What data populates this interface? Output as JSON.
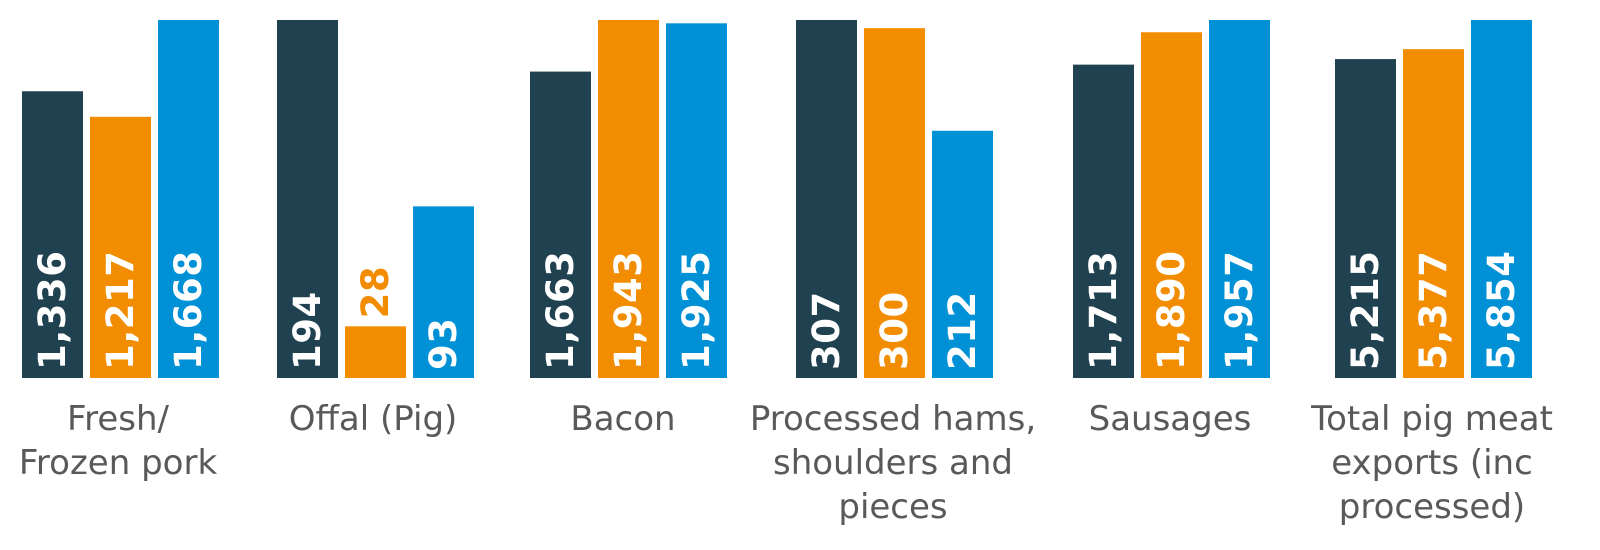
{
  "chart_data": {
    "type": "bar",
    "categories": [
      "Fresh/ Frozen pork",
      "Offal (Pig)",
      "Bacon",
      "Processed hams, shoulders and pieces",
      "Sausages",
      "Total pig meat exports (inc processed)"
    ],
    "category_lines": [
      [
        "Fresh/",
        "Frozen pork"
      ],
      [
        "Offal (Pig)"
      ],
      [
        "Bacon"
      ],
      [
        "Processed hams,",
        "shoulders and",
        "pieces"
      ],
      [
        "Sausages"
      ],
      [
        "Total pig meat",
        "exports (inc",
        "processed)"
      ]
    ],
    "series": [
      {
        "values": [
          1336,
          194,
          1663,
          307,
          1713,
          5215
        ],
        "labels": [
          "1,336",
          "194",
          "1,663",
          "307",
          "1,713",
          "5,215"
        ],
        "color": "#1f4150",
        "label_color": "#ffffff"
      },
      {
        "values": [
          1217,
          28,
          1943,
          300,
          1890,
          5377
        ],
        "labels": [
          "1,217",
          "28",
          "1,943",
          "300",
          "1,890",
          "5,377"
        ],
        "color": "#f28c00",
        "label_color": "#ffffff",
        "small_label_color": "#f28c00"
      },
      {
        "values": [
          1668,
          93,
          1925,
          212,
          1957,
          5854
        ],
        "labels": [
          "1,668",
          "93",
          "1,925",
          "212",
          "1,957",
          "5,854"
        ],
        "color": "#0090d5",
        "label_color": "#ffffff"
      }
    ],
    "scale": "independent per category",
    "grid": false,
    "legend": "none visible"
  }
}
